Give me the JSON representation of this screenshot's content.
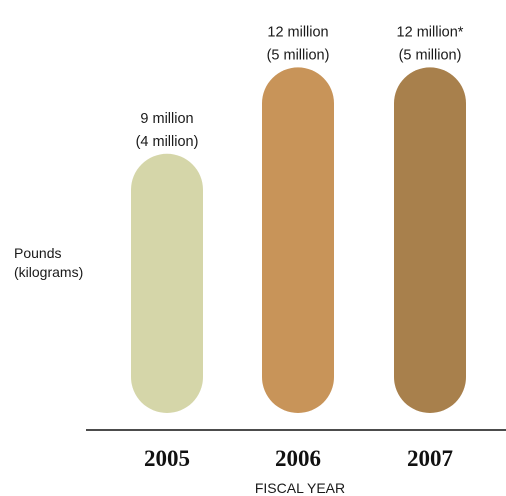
{
  "chart_data": {
    "type": "bar",
    "categories": [
      "2005",
      "2006",
      "2007"
    ],
    "values": [
      9,
      12,
      12
    ],
    "value_unit": "million pounds",
    "data_labels": [
      {
        "primary": "9 million",
        "secondary": "(4 million)"
      },
      {
        "primary": "12 million",
        "secondary": "(5 million)"
      },
      {
        "primary": "12 million*",
        "secondary": "(5 million)"
      }
    ],
    "bar_colors": [
      "#d5d6a9",
      "#c89459",
      "#a8804c"
    ],
    "title": "",
    "ylabel_lines": [
      "Pounds",
      "(kilograms)"
    ],
    "xlabel": "FISCAL YEAR",
    "ylim": [
      0,
      12
    ],
    "grid": false,
    "legend": "none"
  }
}
